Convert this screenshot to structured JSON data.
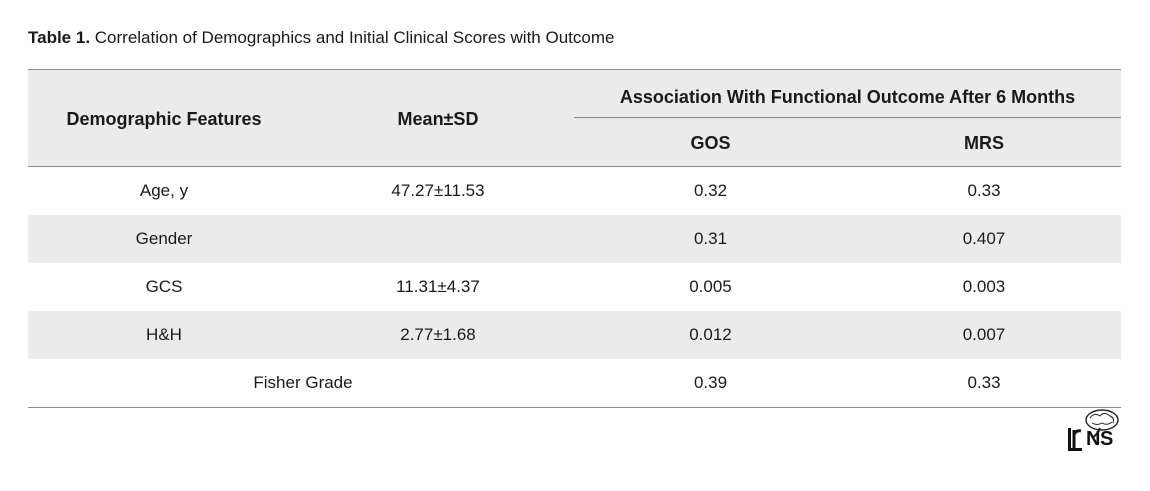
{
  "caption": {
    "label": "Table 1.",
    "text": " Correlation of Demographics and Initial Clinical Scores with Outcome"
  },
  "table": {
    "headers": {
      "feature": "Demographic Features",
      "mean": "Mean±SD",
      "group": "Association With Functional Outcome After 6 Months",
      "gos": "GOS",
      "mrs": "MRS"
    },
    "rows": [
      {
        "feature": "Age, y",
        "mean": "47.27±11.53",
        "gos": "0.32",
        "mrs": "0.33"
      },
      {
        "feature": "Gender",
        "mean": "",
        "gos": "0.31",
        "mrs": "0.407"
      },
      {
        "feature": "GCS",
        "mean": "11.31±4.37",
        "gos": "0.005",
        "mrs": "0.003"
      },
      {
        "feature": "H&H",
        "mean": "2.77±1.68",
        "gos": "0.012",
        "mrs": "0.007"
      },
      {
        "feature": "Fisher Grade",
        "mean": "",
        "gos": "0.39",
        "mrs": "0.33"
      }
    ]
  },
  "logo": {
    "text": "NS",
    "icon": "brain-logo-icon"
  }
}
